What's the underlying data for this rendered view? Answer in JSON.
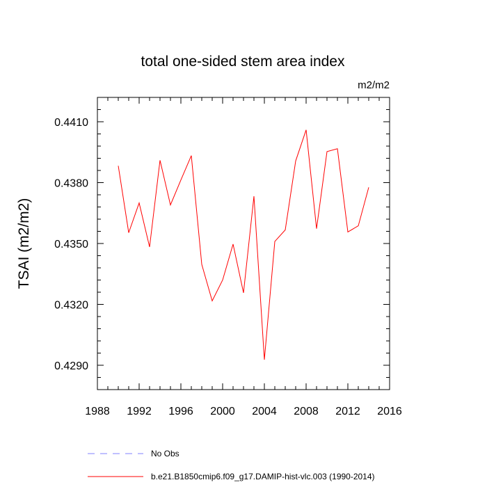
{
  "chart_data": {
    "type": "line",
    "title": "total one-sided stem area index",
    "units": "m2/m2",
    "xlabel": "",
    "ylabel": "TSAI  (m2/m2)",
    "xlim": [
      1988,
      2016
    ],
    "ylim": [
      0.4278,
      0.4422
    ],
    "x_ticks": [
      1988,
      1992,
      1996,
      2000,
      2004,
      2008,
      2012,
      2016
    ],
    "x_tick_labels": [
      "1988",
      "1992",
      "1996",
      "2000",
      "2004",
      "2008",
      "2012",
      "2016"
    ],
    "y_ticks": [
      0.429,
      0.432,
      0.435,
      0.438,
      0.441
    ],
    "y_tick_labels": [
      "0.4290",
      "0.4320",
      "0.4350",
      "0.4380",
      "0.4410"
    ],
    "grid": false,
    "legend_position": "bottom",
    "legend": [
      {
        "label": "No Obs",
        "color": "#8080ff",
        "dash": "dashed"
      },
      {
        "label": "b.e21.B1850cmip6.f09_g17.DAMIP-hist-vlc.003 (1990-2014)",
        "color": "#ff0000",
        "dash": "solid"
      }
    ],
    "series": [
      {
        "name": "b.e21.B1850cmip6.f09_g17.DAMIP-hist-vlc.003 (1990-2014)",
        "color": "#ff0000",
        "x": [
          1990,
          1991,
          1992,
          1993,
          1994,
          1995,
          1996,
          1997,
          1998,
          1999,
          2000,
          2001,
          2002,
          2003,
          2004,
          2005,
          2006,
          2007,
          2008,
          2009,
          2010,
          2011,
          2012,
          2013,
          2014
        ],
        "values": [
          0.43883,
          0.43553,
          0.437,
          0.43483,
          0.4391,
          0.4369,
          0.43813,
          0.43933,
          0.43397,
          0.43217,
          0.4332,
          0.43497,
          0.43257,
          0.43733,
          0.42927,
          0.4351,
          0.43567,
          0.43907,
          0.4406,
          0.43573,
          0.43953,
          0.43967,
          0.43557,
          0.43587,
          0.43777
        ]
      }
    ]
  }
}
